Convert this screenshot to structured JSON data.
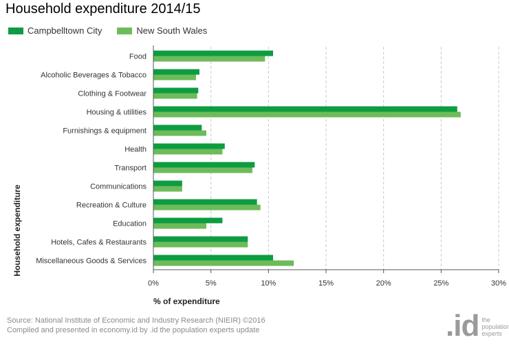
{
  "title": "Household expenditure 2014/15",
  "legend": {
    "series1": "Campbelltown City",
    "series2": "New South Wales"
  },
  "colors": {
    "series1": "#0d9c41",
    "series2": "#6dbb5a",
    "grid": "#c8c8c8",
    "axis": "#555555"
  },
  "source": {
    "line1": "Source: National Institute of Economic and Industry Research (NIEIR) ©2016",
    "line2": "Compiled and presented in economy.id by .id the population experts update"
  },
  "logo": {
    "mark": ".id",
    "tagline": "the population experts"
  },
  "chart_data": {
    "type": "bar",
    "orientation": "horizontal",
    "title": "Household expenditure 2014/15",
    "xlabel": "% of expenditure",
    "ylabel": "Household expenditure",
    "xlim": [
      0,
      30
    ],
    "xticks": [
      0,
      5,
      10,
      15,
      20,
      25,
      30
    ],
    "xtick_labels": [
      "0%",
      "5%",
      "10%",
      "15%",
      "20%",
      "25%",
      "30%"
    ],
    "grid": "vertical dashed",
    "legend_position": "top-left",
    "categories": [
      "Food",
      "Alcoholic Beverages & Tobacco",
      "Clothing & Footwear",
      "Housing & utilities",
      "Furnishings & equipment",
      "Health",
      "Transport",
      "Communications",
      "Recreation & Culture",
      "Education",
      "Hotels, Cafes & Restaurants",
      "Miscellaneous Goods & Services"
    ],
    "series": [
      {
        "name": "Campbelltown City",
        "values": [
          10.4,
          4.0,
          3.9,
          26.4,
          4.2,
          6.2,
          8.8,
          2.5,
          9.0,
          6.0,
          8.2,
          10.4
        ]
      },
      {
        "name": "New South Wales",
        "values": [
          9.7,
          3.7,
          3.8,
          26.7,
          4.6,
          6.0,
          8.6,
          2.5,
          9.3,
          4.6,
          8.2,
          12.2
        ]
      }
    ]
  }
}
